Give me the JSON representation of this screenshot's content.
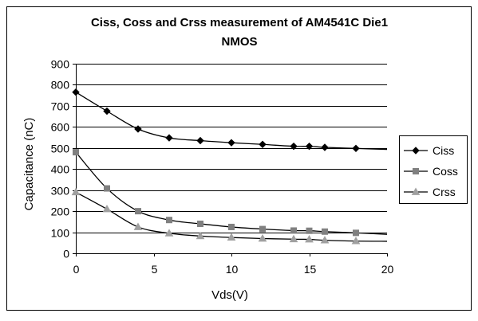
{
  "chart_data": {
    "type": "line",
    "title_lines": [
      "Ciss, Coss and Crss measurement of AM4541C Die1",
      "NMOS"
    ],
    "xlabel": "Vds(V)",
    "ylabel": "Capacitance (nC)",
    "xlim": [
      0,
      20
    ],
    "ylim": [
      0,
      900
    ],
    "xticks": [
      0,
      5,
      10,
      15,
      20
    ],
    "yticks": [
      0,
      100,
      200,
      300,
      400,
      500,
      600,
      700,
      800,
      900
    ],
    "grid": "horizontal",
    "legend_position": "right",
    "series": [
      {
        "name": "Ciss",
        "marker": "diamond",
        "color": "#000000",
        "points": [
          [
            0,
            765
          ],
          [
            2,
            675
          ],
          [
            4,
            590
          ],
          [
            6,
            548
          ],
          [
            8,
            535
          ],
          [
            10,
            525
          ],
          [
            12,
            517
          ],
          [
            14,
            508
          ],
          [
            15,
            508
          ],
          [
            16,
            503
          ],
          [
            18,
            498
          ]
        ],
        "trend_end": [
          20,
          493
        ]
      },
      {
        "name": "Coss",
        "marker": "square",
        "color": "#808080",
        "points": [
          [
            0,
            480
          ],
          [
            2,
            308
          ],
          [
            4,
            200
          ],
          [
            6,
            158
          ],
          [
            8,
            140
          ],
          [
            10,
            125
          ],
          [
            12,
            115
          ],
          [
            14,
            108
          ],
          [
            15,
            107
          ],
          [
            16,
            103
          ],
          [
            18,
            97
          ]
        ],
        "trend_end": [
          20,
          90
        ]
      },
      {
        "name": "Crss",
        "marker": "triangle",
        "color": "#a0a0a0",
        "points": [
          [
            0,
            290
          ],
          [
            2,
            210
          ],
          [
            4,
            125
          ],
          [
            6,
            95
          ],
          [
            8,
            82
          ],
          [
            10,
            75
          ],
          [
            12,
            70
          ],
          [
            14,
            67
          ],
          [
            15,
            66
          ],
          [
            16,
            62
          ],
          [
            18,
            58
          ]
        ],
        "trend_end": [
          20,
          57
        ]
      }
    ]
  }
}
